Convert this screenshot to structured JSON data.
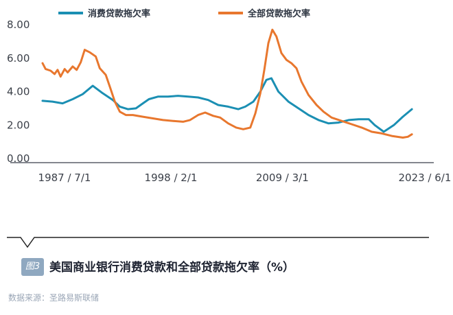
{
  "figure": {
    "badge": "图3",
    "caption": "美国商业银行消费贷款和全部贷款拖欠率（%）",
    "source": "数据来源：圣路易斯联储"
  },
  "colors": {
    "consumer": "#1b8fb3",
    "total": "#e8772e",
    "axis": "#3a3f48",
    "frame": "#222222",
    "badge": "#8fa8c0"
  },
  "chart_data": {
    "type": "line",
    "title": "",
    "xlabel": "",
    "ylabel": "",
    "x_range": [
      1987.5,
      2024.5
    ],
    "ylim": [
      0,
      8
    ],
    "yticks": [
      0,
      2,
      4,
      6,
      8
    ],
    "ytick_labels": [
      "0.00",
      "2.00",
      "4.00",
      "6.00",
      "8.00"
    ],
    "xticks": [
      {
        "value": 1987.5,
        "label": "1987 / 7/1"
      },
      {
        "value": 1998.1,
        "label": "1998 / 2/1"
      },
      {
        "value": 2009.2,
        "label": "2009 / 3/1"
      },
      {
        "value": 2023.4,
        "label": "2023 / 6/1"
      }
    ],
    "legend_position": "top",
    "series": [
      {
        "name": "消费贷款拖欠率",
        "color": "#1b8fb3",
        "points": [
          [
            1987.5,
            3.45
          ],
          [
            1988.5,
            3.4
          ],
          [
            1989.5,
            3.3
          ],
          [
            1990.5,
            3.55
          ],
          [
            1991.5,
            3.85
          ],
          [
            1992.5,
            4.35
          ],
          [
            1993.5,
            3.9
          ],
          [
            1994.5,
            3.5
          ],
          [
            1995.2,
            3.1
          ],
          [
            1996.0,
            2.95
          ],
          [
            1996.8,
            3.0
          ],
          [
            1997.5,
            3.3
          ],
          [
            1998.1,
            3.55
          ],
          [
            1999.0,
            3.7
          ],
          [
            2000.0,
            3.7
          ],
          [
            2001.0,
            3.75
          ],
          [
            2002.0,
            3.7
          ],
          [
            2003.0,
            3.65
          ],
          [
            2004.0,
            3.5
          ],
          [
            2005.0,
            3.2
          ],
          [
            2006.0,
            3.1
          ],
          [
            2007.0,
            2.95
          ],
          [
            2007.7,
            3.1
          ],
          [
            2008.5,
            3.4
          ],
          [
            2009.2,
            4.0
          ],
          [
            2009.8,
            4.7
          ],
          [
            2010.3,
            4.8
          ],
          [
            2011.0,
            4.0
          ],
          [
            2012.0,
            3.4
          ],
          [
            2013.0,
            3.0
          ],
          [
            2014.0,
            2.6
          ],
          [
            2015.0,
            2.3
          ],
          [
            2016.0,
            2.1
          ],
          [
            2017.0,
            2.15
          ],
          [
            2018.0,
            2.3
          ],
          [
            2019.0,
            2.35
          ],
          [
            2020.0,
            2.35
          ],
          [
            2020.6,
            2.0
          ],
          [
            2021.5,
            1.6
          ],
          [
            2022.5,
            2.0
          ],
          [
            2023.4,
            2.5
          ],
          [
            2024.3,
            2.95
          ]
        ]
      },
      {
        "name": "全部贷款拖欠率",
        "color": "#e8772e",
        "points": [
          [
            1987.5,
            5.7
          ],
          [
            1987.8,
            5.35
          ],
          [
            1988.3,
            5.25
          ],
          [
            1988.7,
            5.05
          ],
          [
            1989.0,
            5.3
          ],
          [
            1989.3,
            4.9
          ],
          [
            1989.7,
            5.35
          ],
          [
            1990.0,
            5.15
          ],
          [
            1990.5,
            5.5
          ],
          [
            1990.9,
            5.3
          ],
          [
            1991.3,
            5.75
          ],
          [
            1991.7,
            6.5
          ],
          [
            1992.2,
            6.35
          ],
          [
            1992.8,
            6.1
          ],
          [
            1993.2,
            5.4
          ],
          [
            1993.8,
            5.0
          ],
          [
            1994.2,
            4.3
          ],
          [
            1994.7,
            3.4
          ],
          [
            1995.2,
            2.8
          ],
          [
            1995.8,
            2.6
          ],
          [
            1996.5,
            2.6
          ],
          [
            1997.5,
            2.5
          ],
          [
            1998.5,
            2.4
          ],
          [
            1999.5,
            2.3
          ],
          [
            2000.5,
            2.25
          ],
          [
            2001.5,
            2.2
          ],
          [
            2002.2,
            2.3
          ],
          [
            2003.0,
            2.6
          ],
          [
            2003.7,
            2.75
          ],
          [
            2004.5,
            2.55
          ],
          [
            2005.2,
            2.45
          ],
          [
            2006.0,
            2.1
          ],
          [
            2006.8,
            1.85
          ],
          [
            2007.5,
            1.75
          ],
          [
            2008.2,
            1.85
          ],
          [
            2008.7,
            2.7
          ],
          [
            2009.2,
            3.9
          ],
          [
            2009.6,
            5.3
          ],
          [
            2010.0,
            6.9
          ],
          [
            2010.4,
            7.7
          ],
          [
            2010.8,
            7.3
          ],
          [
            2011.3,
            6.3
          ],
          [
            2011.8,
            5.9
          ],
          [
            2012.3,
            5.7
          ],
          [
            2012.8,
            5.4
          ],
          [
            2013.3,
            4.6
          ],
          [
            2014.0,
            3.8
          ],
          [
            2014.8,
            3.2
          ],
          [
            2015.5,
            2.8
          ],
          [
            2016.3,
            2.45
          ],
          [
            2017.3,
            2.25
          ],
          [
            2018.3,
            2.05
          ],
          [
            2019.3,
            1.85
          ],
          [
            2020.3,
            1.6
          ],
          [
            2021.3,
            1.5
          ],
          [
            2022.3,
            1.35
          ],
          [
            2023.4,
            1.25
          ],
          [
            2023.9,
            1.3
          ],
          [
            2024.3,
            1.45
          ]
        ]
      }
    ]
  }
}
